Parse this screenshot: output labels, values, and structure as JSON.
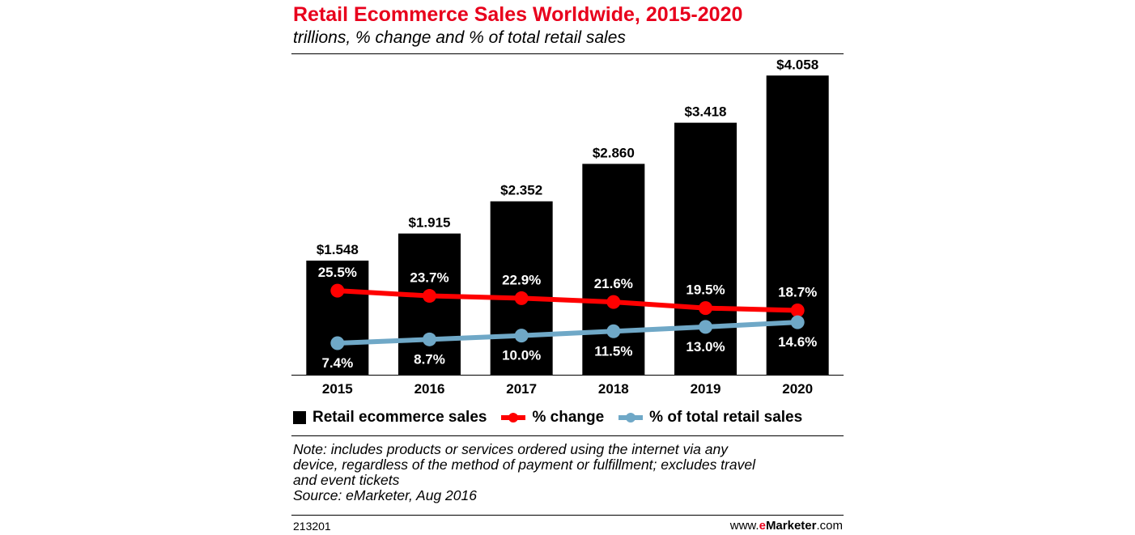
{
  "title": "Retail Ecommerce Sales Worldwide, 2015-2020",
  "subtitle": "trillions, % change and % of total retail sales",
  "chart_data": {
    "type": "bar",
    "categories": [
      "2015",
      "2016",
      "2017",
      "2018",
      "2019",
      "2020"
    ],
    "series": [
      {
        "name": "Retail ecommerce sales",
        "type": "bar",
        "color": "#000000",
        "values": [
          1.548,
          1.915,
          2.352,
          2.86,
          3.418,
          4.058
        ],
        "labels": [
          "$1.548",
          "$1.915",
          "$2.352",
          "$2.860",
          "$3.418",
          "$4.058"
        ]
      },
      {
        "name": "% change",
        "type": "line",
        "color": "#ff0000",
        "values": [
          25.5,
          23.7,
          22.9,
          21.6,
          19.5,
          18.7
        ],
        "labels": [
          "25.5%",
          "23.7%",
          "22.9%",
          "21.6%",
          "19.5%",
          "18.7%"
        ]
      },
      {
        "name": "% of total retail sales",
        "type": "line",
        "color": "#6fa8c7",
        "values": [
          7.4,
          8.7,
          10.0,
          11.5,
          13.0,
          14.6
        ],
        "labels": [
          "7.4%",
          "8.7%",
          "10.0%",
          "11.5%",
          "13.0%",
          "14.6%"
        ]
      }
    ],
    "legend_position": "bottom",
    "grid": false
  },
  "note_lines": [
    "Note: includes products or services ordered using the internet via any",
    "device, regardless of the method of payment or fulfillment; excludes travel",
    "and event tickets",
    "Source: eMarketer, Aug 2016"
  ],
  "chart_id": "213201",
  "brand": {
    "prefix": "www.",
    "accent": "e",
    "name": "Marketer",
    "suffix": ".com"
  }
}
